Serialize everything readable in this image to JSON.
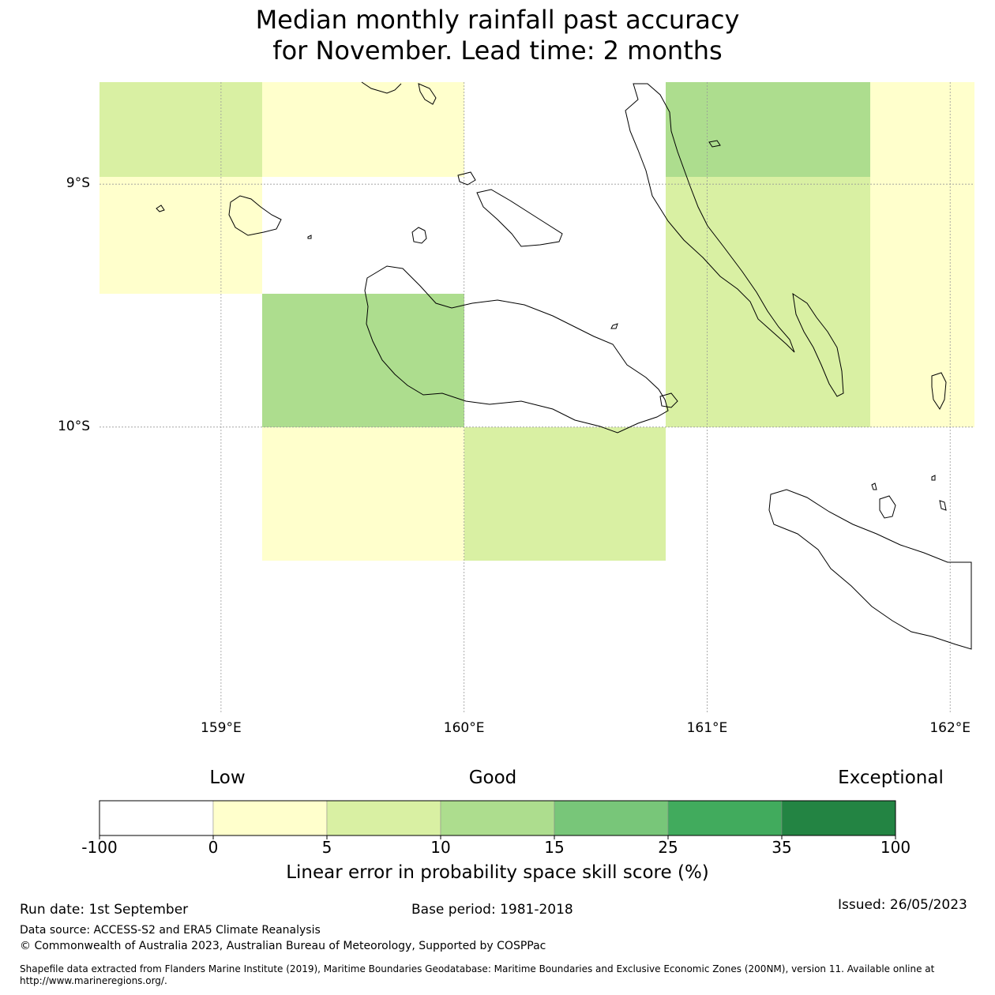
{
  "title": {
    "line1": "Median monthly rainfall past accuracy",
    "line2": "for November. Lead time: 2 months"
  },
  "map": {
    "lon_range": [
      158.5,
      162.1
    ],
    "lat_range": [
      -11.08,
      -8.58
    ],
    "grid_lons": [
      159,
      160,
      161,
      162
    ],
    "grid_lats": [
      -9,
      -10
    ],
    "lat_labels": [
      {
        "lat": -9,
        "text": "9°S"
      },
      {
        "lat": -10,
        "text": "10°S"
      }
    ],
    "lon_labels": [
      {
        "lon": 159,
        "text": "159°E"
      },
      {
        "lon": 160,
        "text": "160°E"
      },
      {
        "lon": 161,
        "text": "161°E"
      },
      {
        "lon": 162,
        "text": "162°E"
      }
    ],
    "cells": [
      {
        "lon0": 158.5,
        "lon1": 159.17,
        "lat0": -8.58,
        "lat1": -8.97,
        "category": "5-10"
      },
      {
        "lon0": 159.17,
        "lon1": 160.0,
        "lat0": -8.58,
        "lat1": -8.97,
        "category": "0-5"
      },
      {
        "lon0": 160.83,
        "lon1": 161.67,
        "lat0": -8.58,
        "lat1": -8.97,
        "category": "10-15"
      },
      {
        "lon0": 161.67,
        "lon1": 162.1,
        "lat0": -8.58,
        "lat1": -10.0,
        "category": "0-5"
      },
      {
        "lon0": 158.5,
        "lon1": 159.17,
        "lat0": -8.97,
        "lat1": -9.45,
        "category": "0-5"
      },
      {
        "lon0": 160.83,
        "lon1": 161.67,
        "lat0": -8.97,
        "lat1": -10.0,
        "category": "5-10"
      },
      {
        "lon0": 159.17,
        "lon1": 160.0,
        "lat0": -9.45,
        "lat1": -10.0,
        "category": "10-15"
      },
      {
        "lon0": 159.17,
        "lon1": 160.0,
        "lat0": -10.0,
        "lat1": -10.55,
        "category": "0-5"
      },
      {
        "lon0": 160.0,
        "lon1": 160.83,
        "lat0": -10.0,
        "lat1": -10.55,
        "category": "5-10"
      }
    ]
  },
  "colorbar": {
    "category_labels": [
      "Low",
      "Good",
      "Exceptional"
    ],
    "bins": [
      {
        "range": "-100-0",
        "color": "#ffffff"
      },
      {
        "range": "0-5",
        "color": "#ffffcc"
      },
      {
        "range": "5-10",
        "color": "#d9f0a3"
      },
      {
        "range": "10-15",
        "color": "#addd8e"
      },
      {
        "range": "15-25",
        "color": "#78c679"
      },
      {
        "range": "25-35",
        "color": "#41ab5d"
      },
      {
        "range": "35-100",
        "color": "#238443"
      }
    ],
    "ticks": [
      "-100",
      "0",
      "5",
      "10",
      "15",
      "25",
      "35",
      "100"
    ],
    "label": "Linear error in probability space skill score (%)"
  },
  "footer": {
    "run_date": "Run date: 1st September",
    "base_period": "Base period: 1981-2018",
    "issued": "Issued: 26/05/2023",
    "data_source": "Data source: ACCESS-S2 and ERA5 Climate Reanalysis",
    "copyright": "© Commonwealth of Australia 2023, Australian Bureau of Meteorology, Supported by COSPPac",
    "shapefile": "Shapefile data extracted from Flanders Marine Institute (2019), Maritime Boundaries Geodatabase: Maritime Boundaries and Exclusive Economic Zones (200NM), version 11. Available online at http://www.marineregions.org/."
  }
}
